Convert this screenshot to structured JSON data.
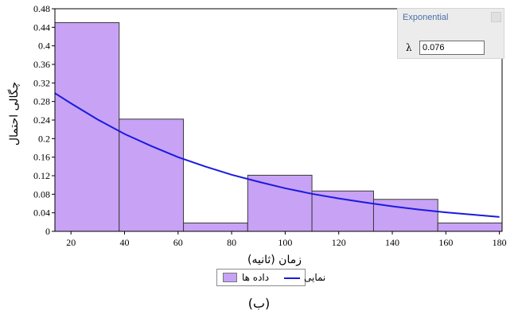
{
  "chart_data": {
    "type": "bar",
    "subtype": "histogram-with-fitted-curve",
    "title": "",
    "xlabel": "زمان (ثانیه)",
    "ylabel": "چگالی احتمال",
    "xlim": [
      14,
      181
    ],
    "ylim": [
      0,
      0.48
    ],
    "xticks": [
      20,
      40,
      60,
      80,
      100,
      120,
      140,
      160,
      180
    ],
    "yticks": [
      0,
      0.04,
      0.08,
      0.12,
      0.16,
      0.2,
      0.24,
      0.28,
      0.32,
      0.36,
      0.4,
      0.44,
      0.48
    ],
    "ytick_labels": [
      "0",
      "0.04",
      "0.08",
      "0.12",
      "0.16",
      "0.2",
      "0.24",
      "0.28",
      "0.32",
      "0.36",
      "0.4",
      "0.44",
      "0.48"
    ],
    "grid": false,
    "legend_position": "bottom-center",
    "bins": [
      {
        "x0": 14,
        "x1": 38,
        "value": 0.45
      },
      {
        "x0": 38,
        "x1": 62,
        "value": 0.242
      },
      {
        "x0": 62,
        "x1": 86,
        "value": 0.018
      },
      {
        "x0": 86,
        "x1": 110,
        "value": 0.121
      },
      {
        "x0": 110,
        "x1": 133,
        "value": 0.087
      },
      {
        "x0": 133,
        "x1": 157,
        "value": 0.069
      },
      {
        "x0": 157,
        "x1": 181,
        "value": 0.018
      }
    ],
    "series": [
      {
        "name": "داده ها",
        "kind": "histogram",
        "color": "#c8a2f5"
      },
      {
        "name": "نمایی",
        "kind": "curve",
        "color": "#1a1ae0",
        "x": [
          14,
          20,
          30,
          40,
          50,
          60,
          70,
          80,
          90,
          100,
          110,
          120,
          130,
          140,
          150,
          160,
          170,
          180
        ],
        "y": [
          0.298,
          0.276,
          0.241,
          0.21,
          0.184,
          0.16,
          0.14,
          0.122,
          0.107,
          0.093,
          0.081,
          0.071,
          0.062,
          0.054,
          0.047,
          0.041,
          0.036,
          0.031
        ]
      }
    ]
  },
  "fit_panel": {
    "title": "Exponential",
    "param_label": "λ",
    "param_value": "0.076"
  },
  "legend": {
    "bars_label": "داده ها",
    "line_label": "نمایی"
  },
  "caption": "(ب)",
  "colors": {
    "bar_fill": "#c8a2f5",
    "curve": "#1a1ae0",
    "panel_title": "#4b6fa8"
  }
}
